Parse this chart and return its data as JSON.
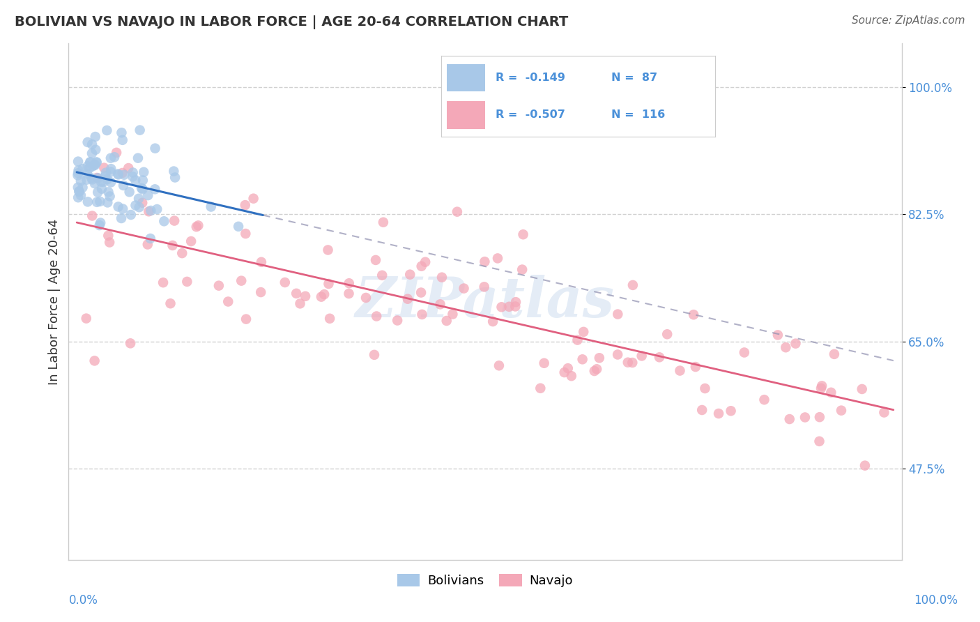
{
  "title": "BOLIVIAN VS NAVAJO IN LABOR FORCE | AGE 20-64 CORRELATION CHART",
  "source_text": "Source: ZipAtlas.com",
  "ylabel": "In Labor Force | Age 20-64",
  "r_bolivian": -0.149,
  "n_bolivian": 87,
  "r_navajo": -0.507,
  "n_navajo": 116,
  "bolivian_color": "#a8c8e8",
  "navajo_color": "#f4a8b8",
  "trendline_bolivian_color": "#3070c0",
  "trendline_navajo_color": "#e06080",
  "trendline_navajo_dash_color": "#9090b0",
  "watermark": "ZIPatlas",
  "legend_label_1": "Bolivians",
  "legend_label_2": "Navajo",
  "ytick_values": [
    0.475,
    0.65,
    0.825,
    1.0
  ],
  "ytick_labels": [
    "47.5%",
    "65.0%",
    "82.5%",
    "100.0%"
  ],
  "xlim": [
    0.0,
    1.0
  ],
  "ylim": [
    0.35,
    1.06
  ],
  "grid_color": "#cccccc",
  "spine_color": "#cccccc",
  "tick_color": "#4a90d9",
  "title_color": "#333333",
  "source_color": "#666666"
}
